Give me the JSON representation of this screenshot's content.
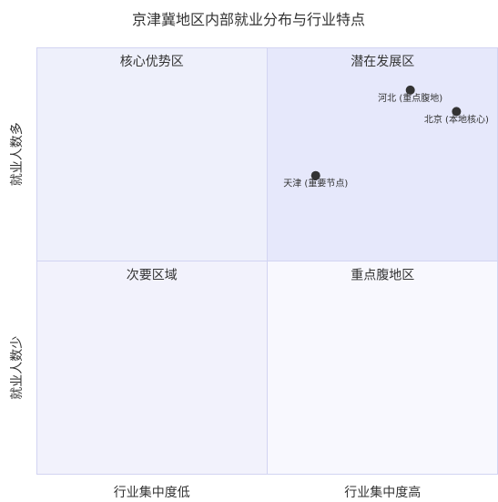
{
  "chart_data": {
    "type": "scatter",
    "title": "京津冀地区内部就业分布与行业特点",
    "x_axis": {
      "low_label": "行业集中度低",
      "high_label": "行业集中度高",
      "range": [
        0,
        1
      ]
    },
    "y_axis": {
      "low_label": "就业人数少",
      "high_label": "就业人数多",
      "range": [
        0,
        1
      ]
    },
    "quadrants": {
      "top_left": {
        "label": "核心优势区",
        "color": "#eef0fb"
      },
      "top_right": {
        "label": "潜在发展区",
        "color": "#e6e8fb"
      },
      "bottom_left": {
        "label": "次要区域",
        "color": "#f2f2fc"
      },
      "bottom_right": {
        "label": "重点腹地区",
        "color": "#f8f8fe"
      }
    },
    "grid_color": "#d2d4f2",
    "point_color": "#333333",
    "points": [
      {
        "label": "河北 (重点腹地)",
        "x": 0.81,
        "y": 0.9
      },
      {
        "label": "北京 (本地核心)",
        "x": 0.91,
        "y": 0.85
      },
      {
        "label": "天津 (重要节点)",
        "x": 0.605,
        "y": 0.7
      }
    ],
    "legend": "none",
    "grid": true
  }
}
